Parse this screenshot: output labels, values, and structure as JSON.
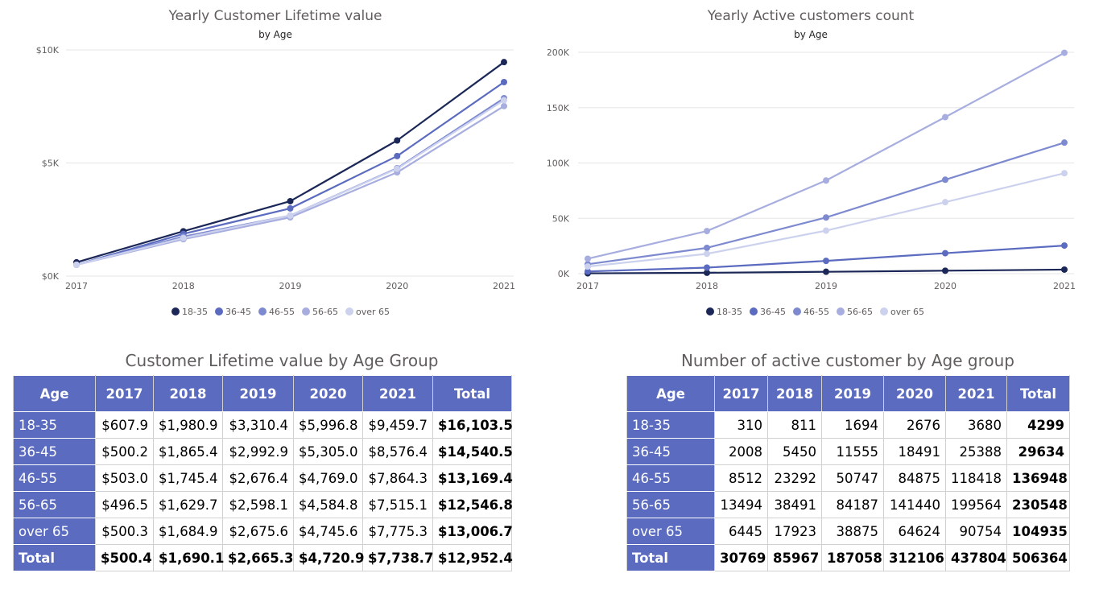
{
  "colors": {
    "series": [
      "#1b2757",
      "#5b6bbf",
      "#7e8ad0",
      "#a7aedf",
      "#ccd2ee"
    ],
    "header_bg": "#5b6bbf"
  },
  "chart_left": {
    "title": "Yearly Customer Lifetime value",
    "subtitle": "by Age"
  },
  "chart_right": {
    "title": "Yearly Active customers count",
    "subtitle": "by Age"
  },
  "chart_data": [
    {
      "type": "line",
      "title": "Yearly Customer Lifetime value",
      "subtitle": "by Age",
      "x": [
        "2017",
        "2018",
        "2019",
        "2020",
        "2021"
      ],
      "ylim": [
        0,
        10000
      ],
      "yticks": [
        0,
        5000,
        10000
      ],
      "ytick_labels": [
        "$0K",
        "$5K",
        "$10K"
      ],
      "grid": true,
      "legend_position": "bottom",
      "series": [
        {
          "name": "18-35",
          "values": [
            607.9,
            1980.9,
            3310.4,
            5996.8,
            9459.7
          ]
        },
        {
          "name": "36-45",
          "values": [
            500.2,
            1865.4,
            2992.9,
            5305.0,
            8576.4
          ]
        },
        {
          "name": "46-55",
          "values": [
            503.0,
            1745.4,
            2676.4,
            4769.0,
            7864.3
          ]
        },
        {
          "name": "56-65",
          "values": [
            496.5,
            1629.7,
            2598.1,
            4584.8,
            7515.1
          ]
        },
        {
          "name": "over 65",
          "values": [
            500.3,
            1684.9,
            2675.6,
            4745.6,
            7775.3
          ]
        }
      ]
    },
    {
      "type": "line",
      "title": "Yearly Active customers count",
      "subtitle": "by Age",
      "x": [
        "2017",
        "2018",
        "2019",
        "2020",
        "2021"
      ],
      "ylim": [
        0,
        200000
      ],
      "yticks": [
        0,
        50000,
        100000,
        150000,
        200000
      ],
      "ytick_labels": [
        "0K",
        "50K",
        "100K",
        "150K",
        "200K"
      ],
      "grid": true,
      "legend_position": "bottom",
      "series": [
        {
          "name": "18-35",
          "values": [
            310,
            811,
            1694,
            2676,
            3680
          ]
        },
        {
          "name": "36-45",
          "values": [
            2008,
            5450,
            11555,
            18491,
            25388
          ]
        },
        {
          "name": "46-55",
          "values": [
            8512,
            23292,
            50747,
            84875,
            118418
          ]
        },
        {
          "name": "56-65",
          "values": [
            13494,
            38491,
            84187,
            141440,
            199564
          ]
        },
        {
          "name": "over 65",
          "values": [
            6445,
            17923,
            38875,
            64624,
            90754
          ]
        }
      ]
    },
    {
      "type": "table",
      "title": "Customer Lifetime value by Age Group",
      "columns": [
        "Age",
        "2017",
        "2018",
        "2019",
        "2020",
        "2021",
        "Total"
      ],
      "rows": [
        [
          "18-35",
          "$607.9",
          "$1,980.9",
          "$3,310.4",
          "$5,996.8",
          "$9,459.7",
          "$16,103.5"
        ],
        [
          "36-45",
          "$500.2",
          "$1,865.4",
          "$2,992.9",
          "$5,305.0",
          "$8,576.4",
          "$14,540.5"
        ],
        [
          "46-55",
          "$503.0",
          "$1,745.4",
          "$2,676.4",
          "$4,769.0",
          "$7,864.3",
          "$13,169.4"
        ],
        [
          "56-65",
          "$496.5",
          "$1,629.7",
          "$2,598.1",
          "$4,584.8",
          "$7,515.1",
          "$12,546.8"
        ],
        [
          "over 65",
          "$500.3",
          "$1,684.9",
          "$2,675.6",
          "$4,745.6",
          "$7,775.3",
          "$13,006.7"
        ]
      ],
      "total": [
        "Total",
        "$500.4",
        "$1,690.1",
        "$2,665.3",
        "$4,720.9",
        "$7,738.7",
        "$12,952.4"
      ]
    },
    {
      "type": "table",
      "title": "Number of active customer by Age group",
      "columns": [
        "Age",
        "2017",
        "2018",
        "2019",
        "2020",
        "2021",
        "Total"
      ],
      "rows": [
        [
          "18-35",
          "310",
          "811",
          "1694",
          "2676",
          "3680",
          "4299"
        ],
        [
          "36-45",
          "2008",
          "5450",
          "11555",
          "18491",
          "25388",
          "29634"
        ],
        [
          "46-55",
          "8512",
          "23292",
          "50747",
          "84875",
          "118418",
          "136948"
        ],
        [
          "56-65",
          "13494",
          "38491",
          "84187",
          "141440",
          "199564",
          "230548"
        ],
        [
          "over 65",
          "6445",
          "17923",
          "38875",
          "64624",
          "90754",
          "104935"
        ]
      ],
      "total": [
        "Total",
        "30769",
        "85967",
        "187058",
        "312106",
        "437804",
        "506364"
      ]
    }
  ]
}
